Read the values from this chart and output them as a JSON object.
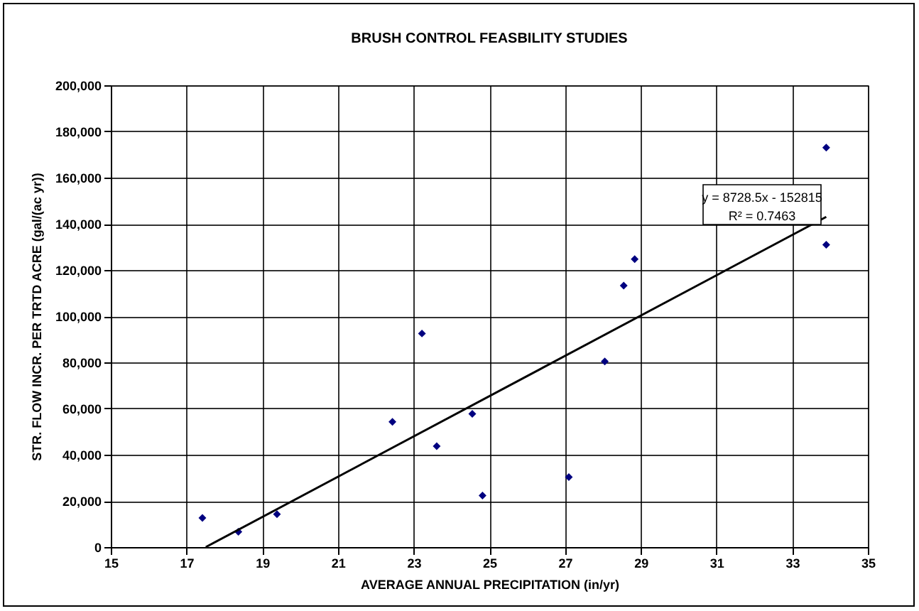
{
  "chart_data": {
    "type": "scatter",
    "title": "BRUSH CONTROL FEASBILITY STUDIES",
    "xlabel": "AVERAGE ANNUAL PRECIPITATION (in/yr)",
    "ylabel": "STR. FLOW INCR. PER TRTD ACRE (gal/(ac yr))",
    "xlim": [
      15,
      35
    ],
    "xticks": [
      15,
      17,
      19,
      21,
      23,
      25,
      27,
      29,
      31,
      33,
      35
    ],
    "ylim": [
      0,
      200000
    ],
    "yticks": [
      0,
      {
        "value": 20000,
        "label": "20,000"
      },
      {
        "value": 40000,
        "label": "40,000"
      },
      {
        "value": 60000,
        "label": "60,000"
      },
      {
        "value": 80000,
        "label": "80,000"
      },
      {
        "value": 100000,
        "label": "100,000"
      },
      {
        "value": 120000,
        "label": "120,000"
      },
      {
        "value": 140000,
        "label": "140,000"
      },
      {
        "value": 160000,
        "label": "160,000"
      },
      {
        "value": 180000,
        "label": "180,000"
      },
      {
        "value": 200000,
        "label": "200,000"
      }
    ],
    "grid": true,
    "series": [
      {
        "marker": "diamond",
        "color": "#000080",
        "x": [
          17.42,
          18.37,
          19.39,
          22.44,
          23.22,
          23.61,
          24.55,
          24.82,
          27.1,
          28.05,
          28.55,
          28.84,
          33.9,
          33.9
        ],
        "values": [
          12600,
          6600,
          14200,
          54200,
          92500,
          43700,
          57700,
          22300,
          30300,
          80400,
          113200,
          124700,
          130900,
          173000
        ]
      },
      {
        "type": "line",
        "marker": "none",
        "color": "#000000",
        "x": [
          17.51,
          33.9
        ],
        "values": [
          0,
          143000
        ]
      }
    ],
    "annotations": [
      "y = 8728.5x - 152815",
      "R² = 0.7463"
    ]
  }
}
